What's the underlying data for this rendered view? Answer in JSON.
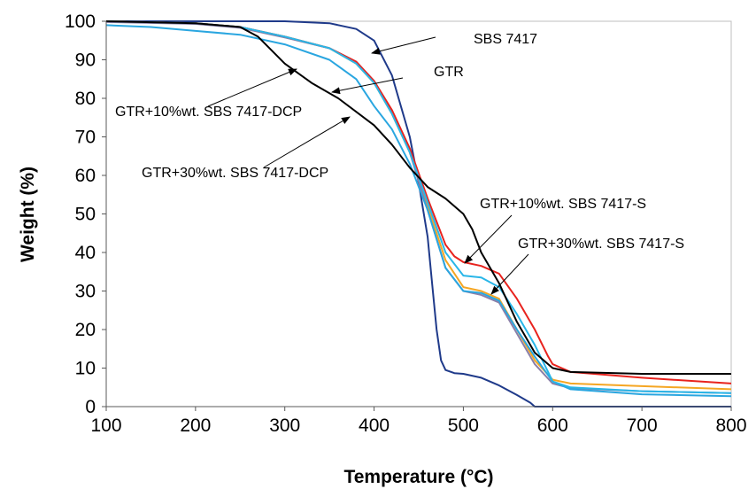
{
  "chart_data": {
    "type": "line",
    "title": "",
    "xlabel": "Temperature (°C)",
    "ylabel": "Weight (%)",
    "xlim": [
      100,
      800
    ],
    "ylim": [
      0,
      100
    ],
    "xticks": [
      100,
      200,
      300,
      400,
      500,
      600,
      700,
      800
    ],
    "yticks": [
      0,
      10,
      20,
      30,
      40,
      50,
      60,
      70,
      80,
      90,
      100
    ],
    "grid": false,
    "legend": "none",
    "series": [
      {
        "name": "SBS 7417",
        "color": "#1f3a8a",
        "x": [
          100,
          200,
          300,
          350,
          380,
          400,
          420,
          440,
          450,
          460,
          465,
          470,
          475,
          480,
          490,
          500,
          520,
          540,
          560,
          575,
          580,
          600,
          800
        ],
        "y": [
          100,
          100,
          100,
          99.5,
          98,
          95,
          86,
          70,
          58,
          44,
          32,
          20,
          12,
          9.5,
          8.7,
          8.5,
          7.5,
          5.5,
          3,
          1,
          0,
          0,
          0
        ]
      },
      {
        "name": "GTR",
        "color": "#f5a623",
        "x": [
          100,
          200,
          250,
          300,
          350,
          380,
          400,
          420,
          440,
          460,
          480,
          500,
          520,
          540,
          560,
          580,
          600,
          620,
          700,
          800
        ],
        "y": [
          100,
          99.5,
          98.5,
          96,
          93,
          89,
          84,
          76,
          66,
          52,
          38,
          31,
          30,
          28,
          20,
          12,
          7,
          6,
          5.3,
          4.5
        ]
      },
      {
        "name": "GTR+10%wt. SBS 7417-DCP",
        "color": "#8a7fa8",
        "x": [
          100,
          200,
          250,
          300,
          350,
          380,
          400,
          420,
          440,
          460,
          480,
          500,
          520,
          540,
          560,
          580,
          600,
          620,
          700,
          800
        ],
        "y": [
          99.8,
          99.3,
          98.3,
          95.8,
          93,
          89.5,
          84.5,
          76.5,
          66,
          51,
          36,
          30,
          29,
          27,
          19,
          11,
          6,
          4.8,
          4,
          3.5
        ]
      },
      {
        "name": "GTR+30%wt. SBS 7417-DCP",
        "color": "#2aa6e0",
        "x": [
          100,
          150,
          200,
          250,
          300,
          350,
          380,
          400,
          420,
          440,
          460,
          480,
          500,
          520,
          540,
          560,
          580,
          600,
          620,
          700,
          800
        ],
        "y": [
          99,
          98.5,
          97.5,
          96.5,
          94,
          90,
          85,
          78,
          72,
          63,
          51,
          36,
          30,
          29.5,
          27.5,
          20,
          13,
          6.5,
          4.5,
          3.2,
          2.7
        ]
      },
      {
        "name": "GTR+10%wt. SBS 7417-S",
        "color": "#e8231e",
        "x": [
          100,
          200,
          250,
          300,
          350,
          380,
          400,
          420,
          440,
          460,
          480,
          490,
          500,
          520,
          540,
          560,
          580,
          595,
          600,
          620,
          700,
          800
        ],
        "y": [
          100,
          99.5,
          98.5,
          96,
          93,
          89.5,
          84.5,
          77,
          67,
          54,
          42,
          39,
          37.5,
          36.5,
          34.5,
          28,
          20,
          13,
          11,
          9,
          7.5,
          6
        ]
      },
      {
        "name": "GTR+30%wt. SBS 7417-S",
        "color": "#29b6e8",
        "x": [
          100,
          200,
          250,
          300,
          350,
          380,
          400,
          420,
          440,
          460,
          480,
          500,
          520,
          540,
          560,
          580,
          595,
          600,
          620,
          700,
          800
        ],
        "y": [
          100,
          99.5,
          98.5,
          96,
          93,
          89,
          84,
          76,
          66,
          53,
          40,
          34,
          33.5,
          31,
          24,
          16,
          9,
          6.5,
          5,
          4,
          3.5
        ]
      },
      {
        "name": "GTR (black)",
        "color": "#000000",
        "x": [
          100,
          200,
          250,
          270,
          300,
          330,
          360,
          400,
          420,
          440,
          460,
          480,
          500,
          510,
          520,
          540,
          560,
          580,
          600,
          620,
          700,
          800
        ],
        "y": [
          100,
          99.5,
          98.5,
          96,
          89,
          84,
          80,
          73,
          68,
          62,
          57,
          54,
          50,
          46,
          40,
          32,
          22,
          14,
          10,
          9,
          8.5,
          8.5
        ]
      }
    ],
    "annotations": [
      {
        "text": "SBS 7417"
      },
      {
        "text": "GTR"
      },
      {
        "text": "GTR+10%wt. SBS 7417-DCP"
      },
      {
        "text": "GTR+30%wt. SBS 7417-DCP"
      },
      {
        "text": "GTR+10%wt. SBS 7417-S"
      },
      {
        "text": "GTR+30%wt. SBS 7417-S"
      }
    ]
  }
}
